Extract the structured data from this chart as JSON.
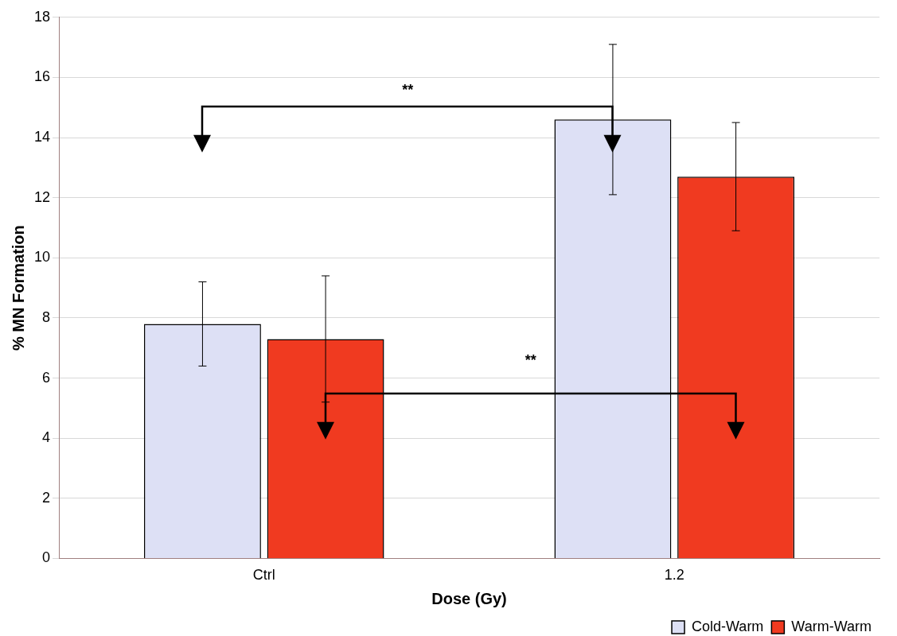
{
  "chart_data": {
    "type": "bar",
    "xlabel": "Dose (Gy)",
    "ylabel": "% MN Formation",
    "categories": [
      "Ctrl",
      "1.2"
    ],
    "series": [
      {
        "name": "Cold-Warm",
        "color": "#dde0f5",
        "values": [
          7.8,
          14.6
        ],
        "errors": [
          1.4,
          2.5
        ]
      },
      {
        "name": "Warm-Warm",
        "color": "#f03a20",
        "values": [
          7.3,
          12.7
        ],
        "errors": [
          2.1,
          1.8
        ]
      }
    ],
    "ylim": [
      0,
      18
    ],
    "yticks": [
      0,
      2,
      4,
      6,
      8,
      10,
      12,
      14,
      16,
      18
    ],
    "grid": "y",
    "legend": "bottom right",
    "annotations": [
      "**",
      "**"
    ]
  }
}
